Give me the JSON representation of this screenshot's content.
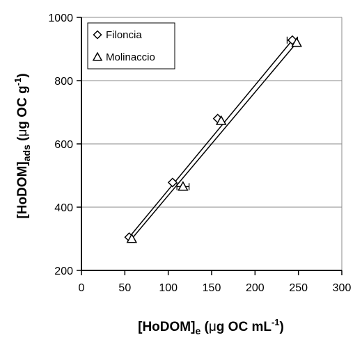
{
  "chart_data": {
    "type": "scatter",
    "x_axis": {
      "label_main": "[HoDOM]",
      "label_sub": "e",
      "label_units_pre": "(",
      "label_mu": "μ",
      "label_units_post": "g OC mL",
      "label_sup": "-1",
      "label_close": ")",
      "min": 0,
      "max": 300,
      "ticks": [
        0,
        50,
        100,
        150,
        200,
        250,
        300
      ],
      "tick_labels": [
        "0",
        "50",
        "100",
        "150",
        "200",
        "250",
        "300"
      ]
    },
    "y_axis": {
      "label_main": "[HoDOM]",
      "label_sub": "ads",
      "label_units_pre": "(",
      "label_mu": "μ",
      "label_units_post": "g OC g",
      "label_sup": "-1",
      "label_close": ")",
      "min": 200,
      "max": 1000,
      "ticks": [
        200,
        400,
        600,
        800,
        1000
      ],
      "tick_labels": [
        "200",
        "400",
        "600",
        "800",
        "1000"
      ],
      "gridlines": [
        400,
        600,
        800,
        1000
      ]
    },
    "legend_position": "top-left",
    "series": [
      {
        "name": "Filoncia",
        "marker": "diamond",
        "points": [
          {
            "x": 55,
            "y": 305,
            "xerr": 0
          },
          {
            "x": 105,
            "y": 478,
            "xerr": 0
          },
          {
            "x": 157,
            "y": 680,
            "xerr": 0
          },
          {
            "x": 243,
            "y": 928,
            "xerr": 6
          }
        ],
        "fit": {
          "x": [
            55,
            243
          ],
          "y": [
            305,
            928
          ]
        }
      },
      {
        "name": "Molinaccio",
        "marker": "triangle",
        "points": [
          {
            "x": 58,
            "y": 300,
            "xerr": 0
          },
          {
            "x": 117,
            "y": 465,
            "xerr": 7
          },
          {
            "x": 161,
            "y": 673,
            "xerr": 0
          },
          {
            "x": 248,
            "y": 920,
            "xerr": 0
          }
        ],
        "fit": {
          "x": [
            58,
            248
          ],
          "y": [
            300,
            920
          ]
        }
      }
    ]
  }
}
